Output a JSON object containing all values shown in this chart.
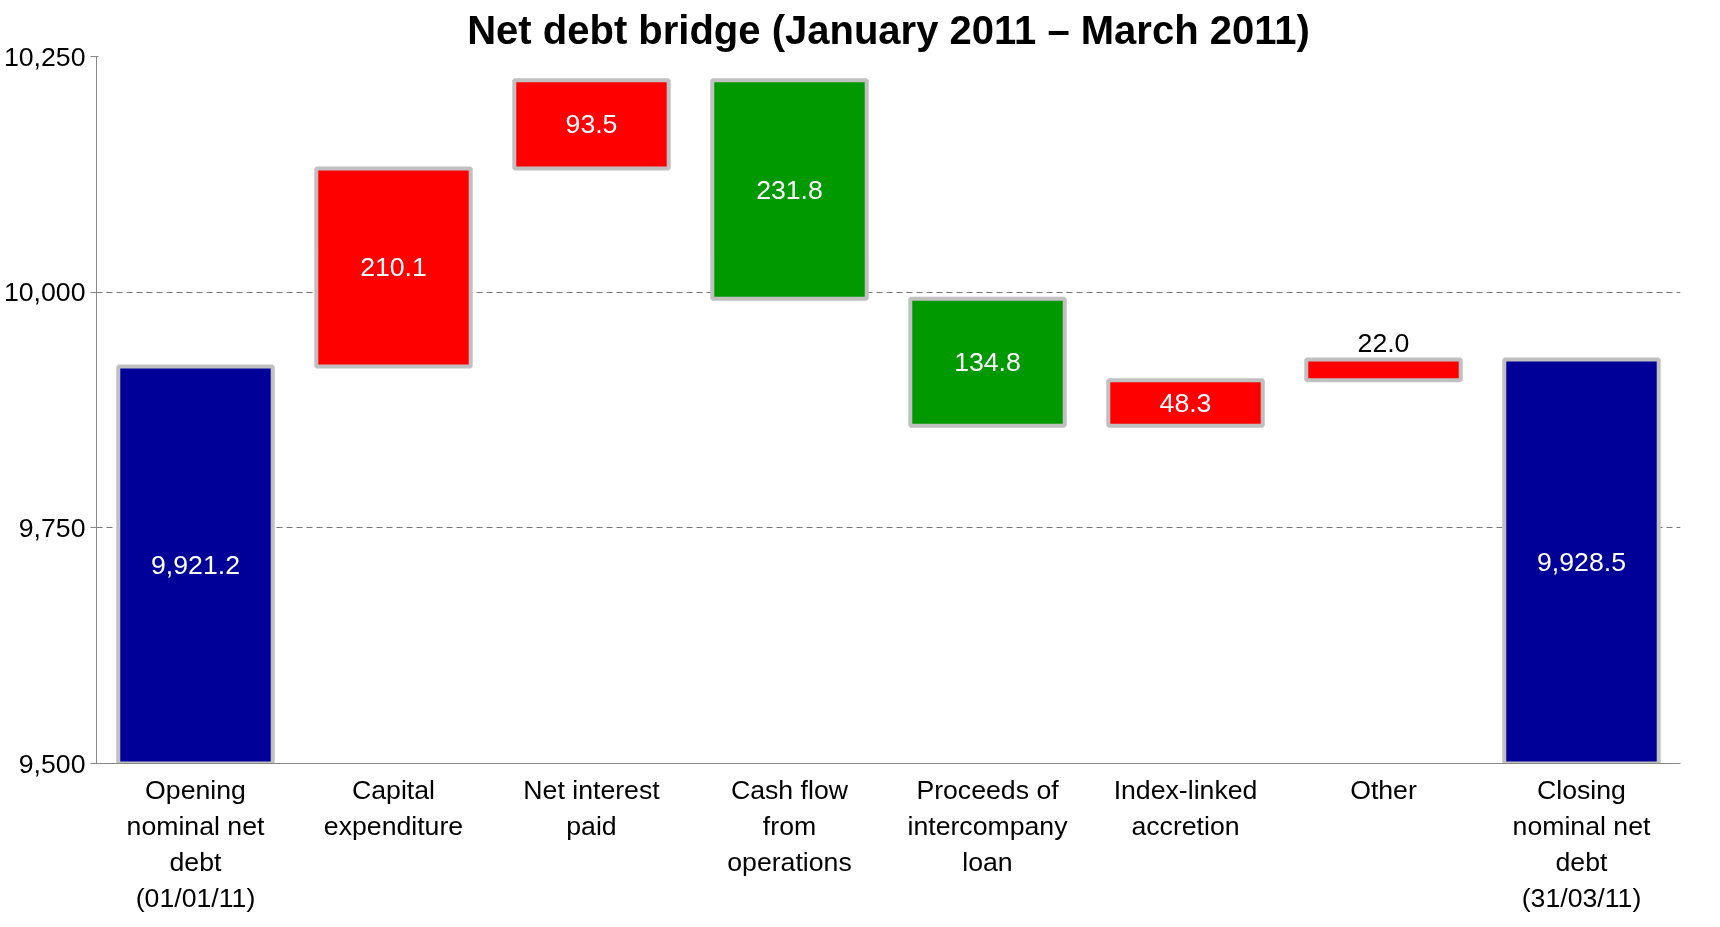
{
  "chart_data": {
    "type": "bar",
    "title": "Net debt bridge (January 2011 – March 2011)",
    "categories": [
      "Opening nominal net debt (01/01/11)",
      "Capital expenditure",
      "Net interest paid",
      "Cash flow from operations",
      "Proceeds of intercompany loan",
      "Index-linked accretion",
      "Other",
      "Closing nominal net debt (31/03/11)"
    ],
    "values": [
      9921.2,
      210.1,
      93.5,
      231.8,
      134.8,
      48.3,
      22.0,
      9928.5
    ],
    "base": [
      null,
      9921.2,
      10131.3,
      9993.0,
      9858.2,
      9858.2,
      9906.5,
      null
    ],
    "colors": [
      "#000099",
      "#ff0000",
      "#ff0000",
      "#009900",
      "#009900",
      "#ff0000",
      "#ff0000",
      "#000099"
    ],
    "value_labels": [
      "9,921.2",
      "210.1",
      "93.5",
      "231.8",
      "134.8",
      "48.3",
      "22.0",
      "9,928.5"
    ],
    "ylim": [
      9500,
      10250
    ],
    "yticks": [
      {
        "value": 9500,
        "label": "9,500"
      },
      {
        "value": 9750,
        "label": "9,750"
      },
      {
        "value": 10000,
        "label": "10,000"
      },
      {
        "value": 10250,
        "label": "10,250"
      }
    ],
    "grid": "y"
  }
}
